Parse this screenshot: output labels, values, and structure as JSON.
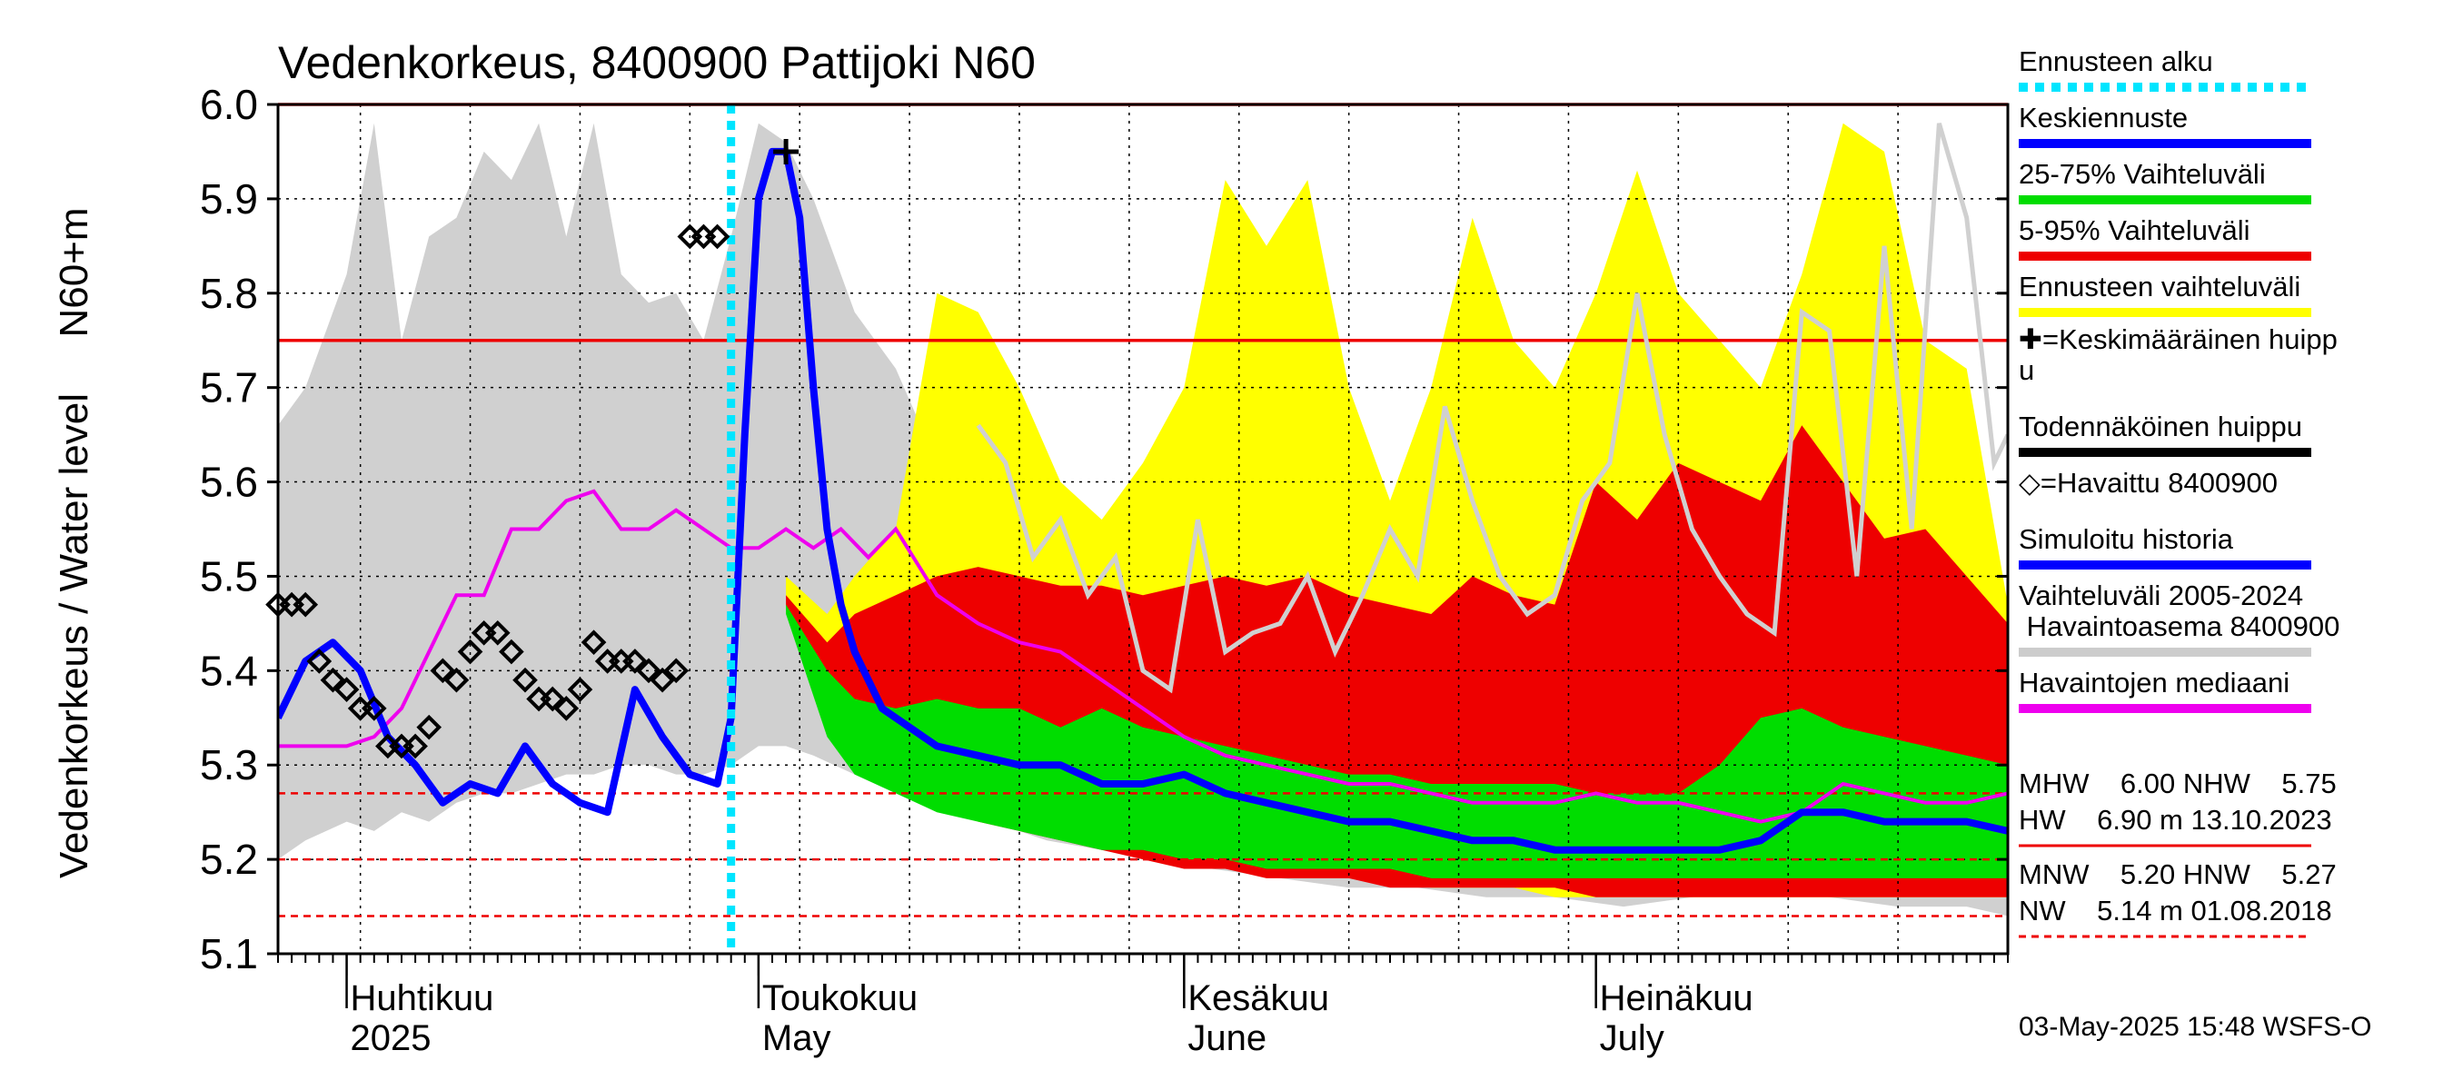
{
  "chart_data": {
    "type": "area",
    "title": "Vedenkorkeus, 8400900 Pattijoki N60",
    "ylabel_unit": "N60+m",
    "ylabel": "Vedenkorkeus / Water level",
    "ylim": [
      5.1,
      6.0
    ],
    "yticks": [
      "5.1",
      "5.2",
      "5.3",
      "5.4",
      "5.5",
      "5.6",
      "5.7",
      "5.8",
      "5.9",
      "6.0"
    ],
    "x_start": "2025-03-27",
    "x_end": "2025-07-31",
    "month_labels": [
      {
        "date": "2025-04-01",
        "line1": "Huhtikuu",
        "line2": "2025"
      },
      {
        "date": "2025-05-01",
        "line1": "Toukokuu",
        "line2": "May"
      },
      {
        "date": "2025-06-01",
        "line1": "Kesäkuu",
        "line2": "June"
      },
      {
        "date": "2025-07-01",
        "line1": "Heinäkuu",
        "line2": "July"
      }
    ],
    "forecast_start": "2025-04-29",
    "reference_lines": [
      {
        "name": "MHW",
        "value": 6.0,
        "style": "solid"
      },
      {
        "name": "NHW",
        "value": 5.75,
        "style": "solid"
      },
      {
        "name": "HNW",
        "value": 5.27,
        "style": "dashed"
      },
      {
        "name": "MNW",
        "value": 5.2,
        "style": "dashed"
      },
      {
        "name": "NW",
        "value": 5.14,
        "style": "dashed"
      }
    ],
    "history_range": {
      "x": [
        "2025-03-27",
        "2025-03-29",
        "2025-04-01",
        "2025-04-03",
        "2025-04-05",
        "2025-04-07",
        "2025-04-09",
        "2025-04-11",
        "2025-04-13",
        "2025-04-15",
        "2025-04-17",
        "2025-04-19",
        "2025-04-21",
        "2025-04-23",
        "2025-04-25",
        "2025-04-27",
        "2025-04-29",
        "2025-05-01",
        "2025-05-03",
        "2025-05-05",
        "2025-05-08",
        "2025-05-11",
        "2025-05-14",
        "2025-05-18",
        "2025-05-22",
        "2025-05-26",
        "2025-05-30",
        "2025-06-03",
        "2025-06-08",
        "2025-06-13",
        "2025-06-18",
        "2025-06-23",
        "2025-06-28",
        "2025-07-03",
        "2025-07-08",
        "2025-07-13",
        "2025-07-18",
        "2025-07-23",
        "2025-07-28",
        "2025-07-31"
      ],
      "high": [
        5.66,
        5.7,
        5.82,
        5.98,
        5.75,
        5.86,
        5.88,
        5.95,
        5.92,
        5.98,
        5.86,
        5.98,
        5.82,
        5.79,
        5.8,
        5.75,
        5.86,
        5.98,
        5.96,
        5.9,
        5.78,
        5.72,
        5.62,
        5.52,
        5.42,
        5.36,
        5.32,
        5.3,
        5.28,
        5.27,
        5.26,
        5.25,
        5.24,
        5.23,
        5.22,
        5.21,
        5.2,
        5.19,
        5.18,
        5.17
      ],
      "low": [
        5.2,
        5.22,
        5.24,
        5.23,
        5.25,
        5.24,
        5.26,
        5.27,
        5.27,
        5.28,
        5.29,
        5.29,
        5.3,
        5.3,
        5.29,
        5.29,
        5.3,
        5.32,
        5.32,
        5.31,
        5.29,
        5.27,
        5.26,
        5.24,
        5.22,
        5.21,
        5.2,
        5.19,
        5.18,
        5.17,
        5.17,
        5.16,
        5.16,
        5.15,
        5.16,
        5.17,
        5.16,
        5.15,
        5.15,
        5.14
      ]
    },
    "forecast_range": {
      "x": [
        "2025-05-03",
        "2025-05-06",
        "2025-05-08",
        "2025-05-11",
        "2025-05-14",
        "2025-05-17",
        "2025-05-20",
        "2025-05-23",
        "2025-05-26",
        "2025-05-29",
        "2025-06-01",
        "2025-06-04",
        "2025-06-07",
        "2025-06-10",
        "2025-06-13",
        "2025-06-16",
        "2025-06-19",
        "2025-06-22",
        "2025-06-25",
        "2025-06-28",
        "2025-07-01",
        "2025-07-04",
        "2025-07-07",
        "2025-07-10",
        "2025-07-13",
        "2025-07-16",
        "2025-07-19",
        "2025-07-22",
        "2025-07-25",
        "2025-07-28",
        "2025-07-31"
      ],
      "high": [
        5.5,
        5.46,
        5.5,
        5.55,
        5.8,
        5.78,
        5.7,
        5.6,
        5.56,
        5.62,
        5.7,
        5.92,
        5.85,
        5.92,
        5.7,
        5.58,
        5.7,
        5.88,
        5.75,
        5.7,
        5.8,
        5.93,
        5.8,
        5.75,
        5.7,
        5.82,
        5.98,
        5.95,
        5.75,
        5.72,
        5.47
      ],
      "low": [
        5.48,
        5.36,
        5.32,
        5.29,
        5.27,
        5.25,
        5.24,
        5.23,
        5.22,
        5.21,
        5.2,
        5.2,
        5.19,
        5.19,
        5.18,
        5.18,
        5.17,
        5.17,
        5.17,
        5.16,
        5.16,
        5.16,
        5.16,
        5.16,
        5.16,
        5.16,
        5.16,
        5.16,
        5.16,
        5.16,
        5.16
      ]
    },
    "range_5_95": {
      "x": [
        "2025-05-03",
        "2025-05-06",
        "2025-05-08",
        "2025-05-11",
        "2025-05-14",
        "2025-05-17",
        "2025-05-20",
        "2025-05-23",
        "2025-05-26",
        "2025-05-29",
        "2025-06-01",
        "2025-06-04",
        "2025-06-07",
        "2025-06-10",
        "2025-06-13",
        "2025-06-16",
        "2025-06-19",
        "2025-06-22",
        "2025-06-25",
        "2025-06-28",
        "2025-07-01",
        "2025-07-04",
        "2025-07-07",
        "2025-07-10",
        "2025-07-13",
        "2025-07-16",
        "2025-07-19",
        "2025-07-22",
        "2025-07-25",
        "2025-07-28",
        "2025-07-31"
      ],
      "high": [
        5.48,
        5.43,
        5.46,
        5.48,
        5.5,
        5.51,
        5.5,
        5.49,
        5.49,
        5.48,
        5.49,
        5.5,
        5.49,
        5.5,
        5.48,
        5.47,
        5.46,
        5.5,
        5.48,
        5.47,
        5.6,
        5.56,
        5.62,
        5.6,
        5.58,
        5.66,
        5.6,
        5.54,
        5.55,
        5.5,
        5.45
      ],
      "low": [
        5.47,
        5.35,
        5.31,
        5.28,
        5.26,
        5.24,
        5.23,
        5.22,
        5.21,
        5.2,
        5.19,
        5.19,
        5.18,
        5.18,
        5.18,
        5.17,
        5.17,
        5.17,
        5.17,
        5.17,
        5.16,
        5.16,
        5.16,
        5.16,
        5.16,
        5.16,
        5.16,
        5.16,
        5.16,
        5.16,
        5.16
      ]
    },
    "range_25_75": {
      "x": [
        "2025-05-03",
        "2025-05-06",
        "2025-05-08",
        "2025-05-11",
        "2025-05-14",
        "2025-05-17",
        "2025-05-20",
        "2025-05-23",
        "2025-05-26",
        "2025-05-29",
        "2025-06-01",
        "2025-06-04",
        "2025-06-07",
        "2025-06-10",
        "2025-06-13",
        "2025-06-16",
        "2025-06-19",
        "2025-06-22",
        "2025-06-25",
        "2025-06-28",
        "2025-07-01",
        "2025-07-04",
        "2025-07-07",
        "2025-07-10",
        "2025-07-13",
        "2025-07-16",
        "2025-07-19",
        "2025-07-22",
        "2025-07-25",
        "2025-07-28",
        "2025-07-31"
      ],
      "high": [
        5.47,
        5.4,
        5.37,
        5.36,
        5.37,
        5.36,
        5.36,
        5.34,
        5.36,
        5.34,
        5.33,
        5.32,
        5.31,
        5.3,
        5.29,
        5.29,
        5.28,
        5.28,
        5.28,
        5.28,
        5.27,
        5.27,
        5.27,
        5.3,
        5.35,
        5.36,
        5.34,
        5.33,
        5.32,
        5.31,
        5.3
      ],
      "low": [
        5.46,
        5.33,
        5.29,
        5.27,
        5.25,
        5.24,
        5.23,
        5.22,
        5.21,
        5.21,
        5.2,
        5.2,
        5.19,
        5.19,
        5.19,
        5.19,
        5.18,
        5.18,
        5.18,
        5.18,
        5.18,
        5.18,
        5.18,
        5.18,
        5.18,
        5.18,
        5.18,
        5.18,
        5.18,
        5.18,
        5.18
      ]
    },
    "series": [
      {
        "name": "Havaintojen mediaani",
        "x": [
          "2025-03-27",
          "2025-03-29",
          "2025-04-01",
          "2025-04-03",
          "2025-04-05",
          "2025-04-07",
          "2025-04-09",
          "2025-04-11",
          "2025-04-13",
          "2025-04-15",
          "2025-04-17",
          "2025-04-19",
          "2025-04-21",
          "2025-04-23",
          "2025-04-25",
          "2025-04-27",
          "2025-04-29",
          "2025-05-01",
          "2025-05-03",
          "2025-05-05",
          "2025-05-07",
          "2025-05-09",
          "2025-05-11",
          "2025-05-14",
          "2025-05-17",
          "2025-05-20",
          "2025-05-23",
          "2025-05-26",
          "2025-05-29",
          "2025-06-01",
          "2025-06-04",
          "2025-06-07",
          "2025-06-10",
          "2025-06-13",
          "2025-06-16",
          "2025-06-19",
          "2025-06-22",
          "2025-06-25",
          "2025-06-28",
          "2025-07-01",
          "2025-07-04",
          "2025-07-07",
          "2025-07-10",
          "2025-07-13",
          "2025-07-16",
          "2025-07-19",
          "2025-07-22",
          "2025-07-25",
          "2025-07-28",
          "2025-07-31"
        ],
        "values": [
          5.32,
          5.32,
          5.32,
          5.33,
          5.36,
          5.42,
          5.48,
          5.48,
          5.55,
          5.55,
          5.58,
          5.59,
          5.55,
          5.55,
          5.57,
          5.55,
          5.53,
          5.53,
          5.55,
          5.53,
          5.55,
          5.52,
          5.55,
          5.48,
          5.45,
          5.43,
          5.42,
          5.39,
          5.36,
          5.33,
          5.31,
          5.3,
          5.29,
          5.28,
          5.28,
          5.27,
          5.26,
          5.26,
          5.26,
          5.27,
          5.26,
          5.26,
          5.25,
          5.24,
          5.25,
          5.28,
          5.27,
          5.26,
          5.26,
          5.27
        ]
      },
      {
        "name": "Simuloitu historia",
        "x": [
          "2025-03-27",
          "2025-03-29",
          "2025-03-31",
          "2025-04-02",
          "2025-04-04",
          "2025-04-06",
          "2025-04-08",
          "2025-04-10",
          "2025-04-12",
          "2025-04-14",
          "2025-04-16",
          "2025-04-18",
          "2025-04-20",
          "2025-04-22",
          "2025-04-24",
          "2025-04-26",
          "2025-04-28",
          "2025-04-29",
          "2025-04-30",
          "2025-05-01",
          "2025-05-02",
          "2025-05-03"
        ],
        "values": [
          5.35,
          5.41,
          5.43,
          5.4,
          5.33,
          5.3,
          5.26,
          5.28,
          5.27,
          5.32,
          5.28,
          5.26,
          5.25,
          5.38,
          5.33,
          5.29,
          5.28,
          5.35,
          5.65,
          5.9,
          5.95,
          5.95
        ]
      },
      {
        "name": "Keskiennuste",
        "x": [
          "2025-05-03",
          "2025-05-04",
          "2025-05-05",
          "2025-05-06",
          "2025-05-07",
          "2025-05-08",
          "2025-05-09",
          "2025-05-10",
          "2025-05-12",
          "2025-05-14",
          "2025-05-17",
          "2025-05-20",
          "2025-05-23",
          "2025-05-26",
          "2025-05-29",
          "2025-06-01",
          "2025-06-04",
          "2025-06-07",
          "2025-06-10",
          "2025-06-13",
          "2025-06-16",
          "2025-06-19",
          "2025-06-22",
          "2025-06-25",
          "2025-06-28",
          "2025-07-01",
          "2025-07-04",
          "2025-07-07",
          "2025-07-10",
          "2025-07-13",
          "2025-07-16",
          "2025-07-19",
          "2025-07-22",
          "2025-07-25",
          "2025-07-28",
          "2025-07-31"
        ],
        "values": [
          5.95,
          5.88,
          5.7,
          5.55,
          5.47,
          5.42,
          5.39,
          5.36,
          5.34,
          5.32,
          5.31,
          5.3,
          5.3,
          5.28,
          5.28,
          5.29,
          5.27,
          5.26,
          5.25,
          5.24,
          5.24,
          5.23,
          5.22,
          5.22,
          5.21,
          5.21,
          5.21,
          5.21,
          5.21,
          5.22,
          5.25,
          5.25,
          5.24,
          5.24,
          5.24,
          5.23
        ]
      },
      {
        "name": "Havaintoasema 8400900",
        "x": [
          "2025-05-17",
          "2025-05-19",
          "2025-05-21",
          "2025-05-23",
          "2025-05-25",
          "2025-05-27",
          "2025-05-29",
          "2025-05-31",
          "2025-06-02",
          "2025-06-04",
          "2025-06-06",
          "2025-06-08",
          "2025-06-10",
          "2025-06-12",
          "2025-06-14",
          "2025-06-16",
          "2025-06-18",
          "2025-06-20",
          "2025-06-22",
          "2025-06-24",
          "2025-06-26",
          "2025-06-28",
          "2025-06-30",
          "2025-07-02",
          "2025-07-04",
          "2025-07-06",
          "2025-07-08",
          "2025-07-10",
          "2025-07-12",
          "2025-07-14",
          "2025-07-16",
          "2025-07-18",
          "2025-07-20",
          "2025-07-22",
          "2025-07-24",
          "2025-07-26",
          "2025-07-28",
          "2025-07-30",
          "2025-07-31"
        ],
        "values": [
          5.66,
          5.62,
          5.52,
          5.56,
          5.48,
          5.52,
          5.4,
          5.38,
          5.56,
          5.42,
          5.44,
          5.45,
          5.5,
          5.42,
          5.48,
          5.55,
          5.5,
          5.68,
          5.58,
          5.5,
          5.46,
          5.48,
          5.58,
          5.62,
          5.8,
          5.65,
          5.55,
          5.5,
          5.46,
          5.44,
          5.78,
          5.76,
          5.5,
          5.85,
          5.55,
          5.98,
          5.88,
          5.62,
          5.65
        ]
      }
    ],
    "observed": {
      "name": "Havaittu 8400900",
      "x": [
        "2025-03-27",
        "2025-03-28",
        "2025-03-29",
        "2025-03-30",
        "2025-03-31",
        "2025-04-01",
        "2025-04-02",
        "2025-04-03",
        "2025-04-04",
        "2025-04-05",
        "2025-04-06",
        "2025-04-07",
        "2025-04-08",
        "2025-04-09",
        "2025-04-10",
        "2025-04-11",
        "2025-04-12",
        "2025-04-13",
        "2025-04-14",
        "2025-04-15",
        "2025-04-16",
        "2025-04-17",
        "2025-04-18",
        "2025-04-19",
        "2025-04-20",
        "2025-04-21",
        "2025-04-22",
        "2025-04-23",
        "2025-04-24",
        "2025-04-25",
        "2025-04-26",
        "2025-04-27",
        "2025-04-28"
      ],
      "values": [
        5.47,
        5.47,
        5.47,
        5.41,
        5.39,
        5.38,
        5.36,
        5.36,
        5.32,
        5.32,
        5.32,
        5.34,
        5.4,
        5.39,
        5.42,
        5.44,
        5.44,
        5.42,
        5.39,
        5.37,
        5.37,
        5.36,
        5.38,
        5.43,
        5.41,
        5.41,
        5.41,
        5.4,
        5.39,
        5.4,
        5.86,
        5.86,
        5.86
      ]
    },
    "mean_peak": {
      "x": "2025-05-03",
      "value": 5.95
    },
    "legend": [
      {
        "label": "Ennusteen alku",
        "color": "#00e5ff",
        "style": "dotted"
      },
      {
        "label": "Keskiennuste",
        "color": "#0000ff",
        "style": "solid"
      },
      {
        "label": "25-75% Vaihteluväli",
        "color": "#00dd00",
        "style": "solid"
      },
      {
        "label": "5-95% Vaihteluväli",
        "color": "#ee0000",
        "style": "solid"
      },
      {
        "label": "Ennusteen vaihteluväli",
        "color": "#ffff00",
        "style": "solid"
      },
      {
        "label": "✚=Keskimääräinen huipp",
        "label2": "u",
        "color": "",
        "style": "none"
      },
      {
        "label": "Todennäköinen huippu",
        "color": "#000000",
        "style": "solid"
      },
      {
        "label": "◇=Havaittu 8400900",
        "color": "",
        "style": "none"
      },
      {
        "label": "Simuloitu historia",
        "color": "#0000ff",
        "style": "solid"
      },
      {
        "label": "Vaihteluväli 2005-2024",
        "label2": " Havaintoasema 8400900",
        "color": "#cccccc",
        "style": "solid"
      },
      {
        "label": "Havaintojen mediaani",
        "color": "#ee00ee",
        "style": "solid"
      }
    ],
    "stats": [
      {
        "line": "MHW    6.00 NHW    5.75",
        "line2": "HW    6.90 m 13.10.2023",
        "color": "#ee0000",
        "style": "solid"
      },
      {
        "line": "MNW    5.20 HNW    5.27",
        "line2": "NW    5.14 m 01.08.2018",
        "color": "#ee0000",
        "style": "dashed"
      }
    ],
    "footer": "03-May-2025 15:48 WSFS-O",
    "colors": {
      "history_range": "#d0d0d0",
      "forecast_range": "#ffff00",
      "range_5_95": "#ee0000",
      "range_25_75": "#00dd00",
      "median": "#ee00ee",
      "forecast": "#0000ff",
      "station": "#d0d0d0",
      "reference": "#ee0000",
      "forecast_start": "#00e5ff"
    }
  }
}
